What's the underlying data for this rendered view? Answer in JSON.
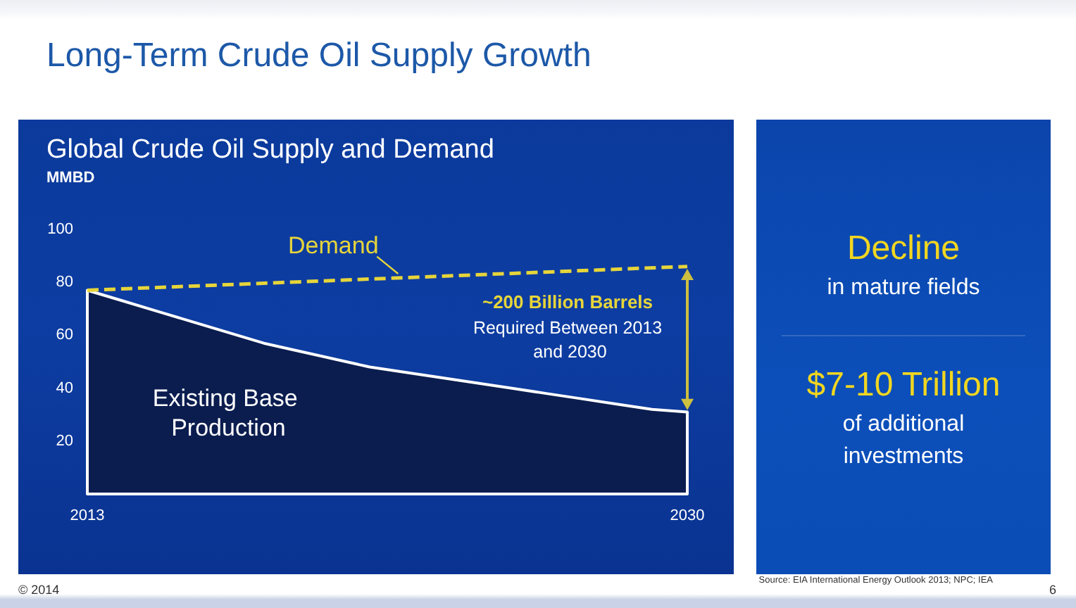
{
  "chart_data": [
    {
      "type": "area",
      "title": "Long-Term Crude Oil Supply Growth",
      "subtitle": "Global Crude Oil Supply and Demand",
      "ylabel": "MMBD",
      "xlim": [
        2013,
        2030
      ],
      "xticks": [
        2013,
        2030
      ],
      "ylim": [
        0,
        100
      ],
      "yticks": [
        20,
        40,
        60,
        80,
        100
      ],
      "series": [
        {
          "name": "Existing Base Production",
          "type": "area",
          "color": "#0b1d4f",
          "x": [
            2013,
            2014,
            2015,
            2016,
            2017,
            2018,
            2019,
            2020,
            2021,
            2022,
            2023,
            2024,
            2025,
            2026,
            2027,
            2028,
            2029,
            2030
          ],
          "values": [
            77,
            73,
            69,
            65,
            61,
            57,
            54,
            51,
            48,
            46,
            44,
            42,
            40,
            38,
            36,
            34,
            32,
            31
          ]
        },
        {
          "name": "Demand",
          "type": "line",
          "color": "#e6d53a",
          "line_style": "dashed",
          "x": [
            2013,
            2030
          ],
          "values": [
            77,
            86
          ]
        }
      ],
      "annotations": [
        "~200 Billion Barrels",
        "Required Between 2013 and 2030",
        "© 2014",
        "Source: EIA International Energy Outlook 2013; NPC; IEA",
        "6"
      ]
    },
    {
      "type": "other",
      "annotations": [
        "Decline",
        "in mature fields",
        "$7-10 Trillion",
        "of additional investments"
      ]
    }
  ]
}
